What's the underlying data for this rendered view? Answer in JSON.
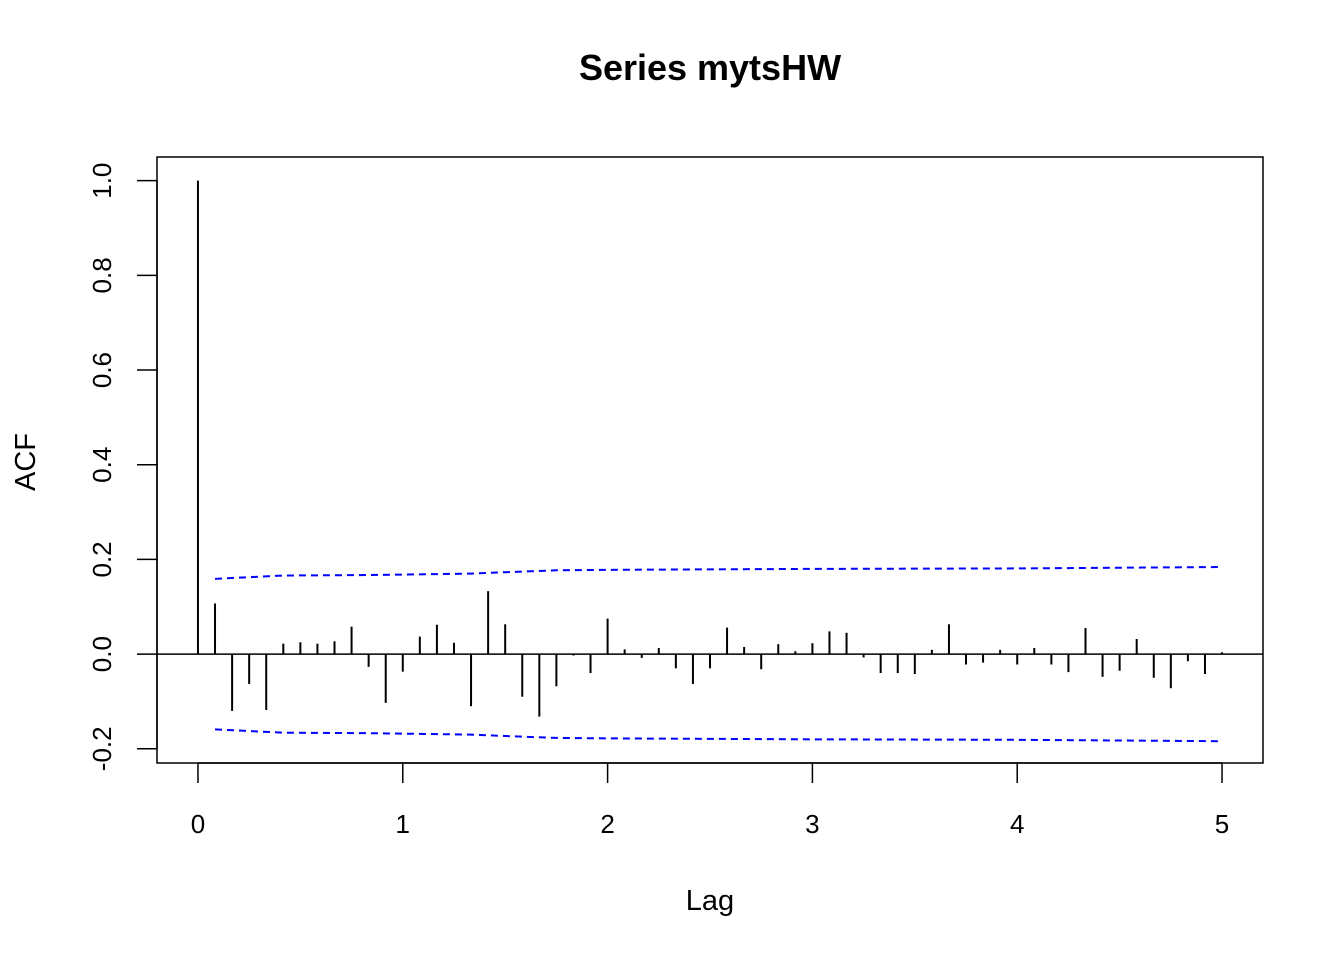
{
  "chart_data": {
    "type": "bar",
    "title": "Series  mytsHW",
    "xlabel": "Lag",
    "ylabel": "ACF",
    "xlim": [
      -0.2,
      5.2
    ],
    "ylim": [
      -0.23,
      1.05
    ],
    "x_ticks": [
      0,
      1,
      2,
      3,
      4,
      5
    ],
    "x_tick_labels": [
      "0",
      "1",
      "2",
      "3",
      "4",
      "5"
    ],
    "y_ticks": [
      -0.2,
      0.0,
      0.2,
      0.4,
      0.6,
      0.8,
      1.0
    ],
    "y_tick_labels": [
      "-0.2",
      "0.0",
      "0.2",
      "0.4",
      "0.6",
      "0.8",
      "1.0"
    ],
    "lags": [
      0,
      0.0833,
      0.1667,
      0.25,
      0.3333,
      0.4167,
      0.5,
      0.5833,
      0.6667,
      0.75,
      0.8333,
      0.9167,
      1.0,
      1.0833,
      1.1667,
      1.25,
      1.3333,
      1.4167,
      1.5,
      1.5833,
      1.6667,
      1.75,
      1.8333,
      1.9167,
      2.0,
      2.0833,
      2.1667,
      2.25,
      2.3333,
      2.4167,
      2.5,
      2.5833,
      2.6667,
      2.75,
      2.8333,
      2.9167,
      3.0,
      3.0833,
      3.1667,
      3.25,
      3.3333,
      3.4167,
      3.5,
      3.5833,
      3.6667,
      3.75,
      3.8333,
      3.9167,
      4.0,
      4.0833,
      4.1667,
      4.25,
      4.3333,
      4.4167,
      4.5,
      4.5833,
      4.6667,
      4.75,
      4.8333,
      4.9167,
      5.0
    ],
    "acf": [
      1.0,
      0.107,
      -0.12,
      -0.063,
      -0.118,
      0.022,
      0.025,
      0.022,
      0.027,
      0.058,
      -0.027,
      -0.103,
      -0.037,
      0.037,
      0.062,
      0.024,
      -0.11,
      0.133,
      0.063,
      -0.09,
      -0.132,
      -0.068,
      -0.003,
      -0.04,
      0.075,
      0.01,
      -0.008,
      0.013,
      -0.03,
      -0.063,
      -0.03,
      0.056,
      0.015,
      -0.032,
      0.021,
      0.006,
      0.023,
      0.048,
      0.045,
      -0.007,
      -0.04,
      -0.04,
      -0.042,
      0.009,
      0.063,
      -0.022,
      -0.018,
      0.009,
      -0.022,
      0.013,
      -0.022,
      -0.038,
      0.055,
      -0.048,
      -0.035,
      0.032,
      -0.05,
      -0.072,
      -0.015,
      -0.042,
      0.004
    ],
    "confidence_band": {
      "color": "#0000ff",
      "style": "dashed",
      "lags": [
        0.0833,
        0.4167,
        0.8333,
        1.0,
        1.3333,
        1.5,
        1.75,
        2.0,
        2.5,
        3.0,
        4.0,
        5.0
      ],
      "upper": [
        0.159,
        0.166,
        0.167,
        0.168,
        0.17,
        0.173,
        0.177,
        0.178,
        0.179,
        0.18,
        0.181,
        0.184
      ],
      "lower": [
        -0.159,
        -0.166,
        -0.167,
        -0.168,
        -0.17,
        -0.173,
        -0.177,
        -0.178,
        -0.179,
        -0.18,
        -0.181,
        -0.184
      ]
    },
    "grid": false,
    "legend": "none",
    "colors": {
      "bars": "#000000",
      "band": "#0000ff",
      "axes": "#000000"
    }
  }
}
